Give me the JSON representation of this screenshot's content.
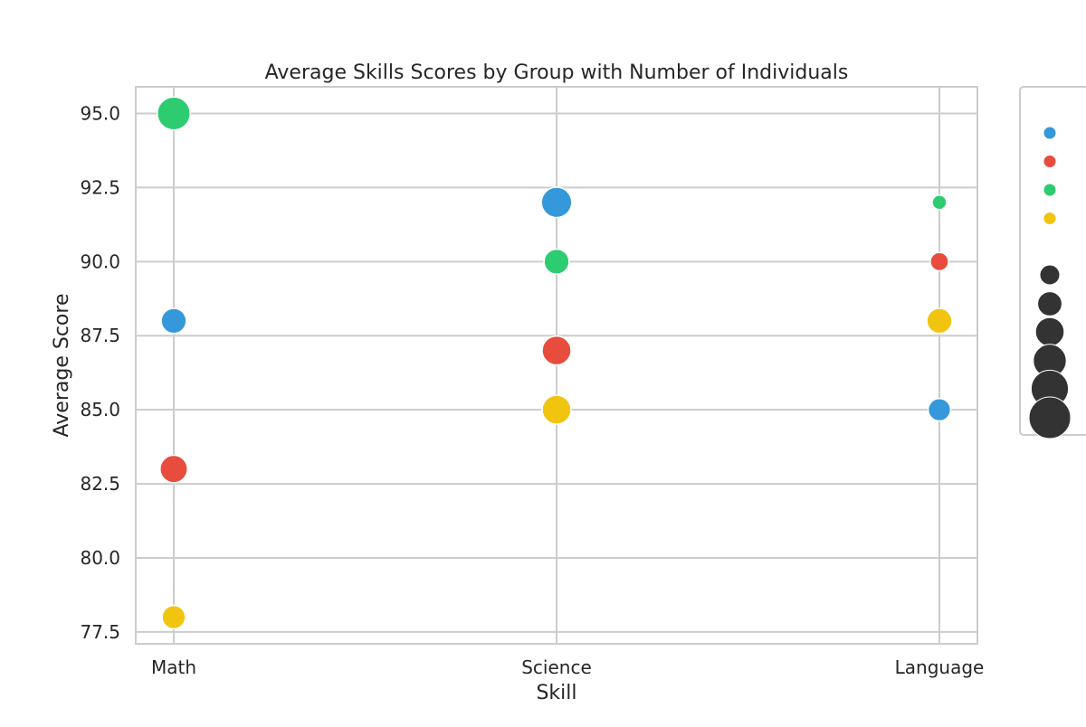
{
  "chart_data": {
    "type": "scatter",
    "title": "Average Skills Scores by Group with Number of Individuals",
    "xlabel": "Skill",
    "ylabel": "Average Score",
    "categories": [
      "Math",
      "Science",
      "Language"
    ],
    "ylim": [
      77.1,
      95.9
    ],
    "yticks": [
      77.5,
      80.0,
      82.5,
      85.0,
      87.5,
      90.0,
      92.5,
      95.0
    ],
    "grid": true,
    "legend_position": "outside-right",
    "series": [
      {
        "color": "#3498db",
        "points": [
          {
            "x": "Math",
            "y": 88.0,
            "size": 1.5
          },
          {
            "x": "Science",
            "y": 92.0,
            "size": 2.2
          },
          {
            "x": "Language",
            "y": 85.0,
            "size": 1.2
          }
        ]
      },
      {
        "color": "#e74c3c",
        "points": [
          {
            "x": "Math",
            "y": 83.0,
            "size": 1.8
          },
          {
            "x": "Science",
            "y": 87.0,
            "size": 2.0
          },
          {
            "x": "Language",
            "y": 90.0,
            "size": 0.8
          }
        ]
      },
      {
        "color": "#2ecc71",
        "points": [
          {
            "x": "Math",
            "y": 95.0,
            "size": 2.6
          },
          {
            "x": "Science",
            "y": 90.0,
            "size": 1.5
          },
          {
            "x": "Language",
            "y": 92.0,
            "size": 0.5
          }
        ]
      },
      {
        "color": "#f1c40f",
        "points": [
          {
            "x": "Math",
            "y": 78.0,
            "size": 1.3
          },
          {
            "x": "Science",
            "y": 85.0,
            "size": 2.0
          },
          {
            "x": "Language",
            "y": 88.0,
            "size": 1.5
          }
        ]
      }
    ],
    "size_legend": [
      {
        "size": 0.8
      },
      {
        "size": 1.2
      },
      {
        "size": 1.6
      },
      {
        "size": 2.0
      },
      {
        "size": 2.4
      },
      {
        "size": 2.8
      }
    ]
  }
}
